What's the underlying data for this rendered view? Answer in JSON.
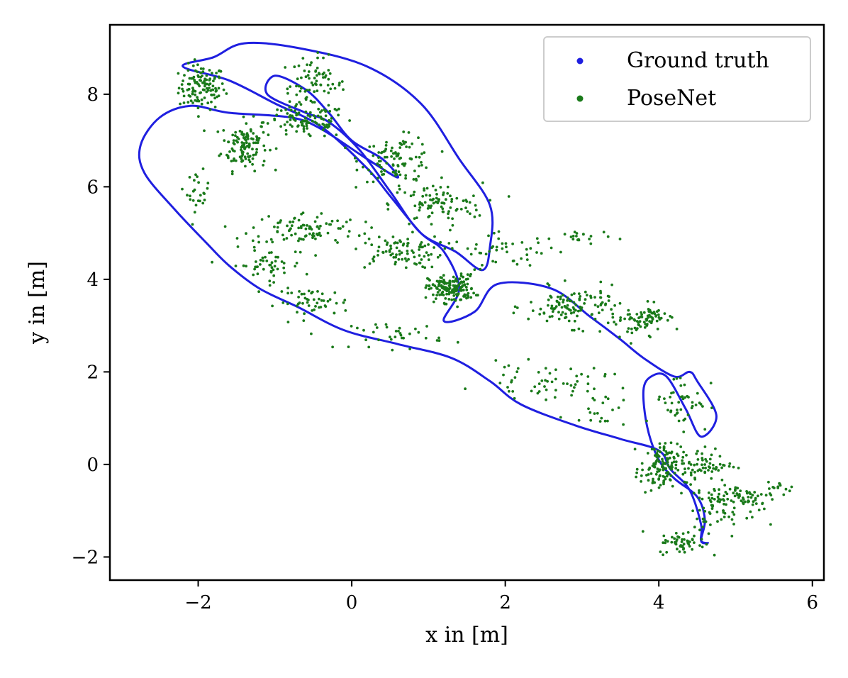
{
  "chart_data": {
    "type": "scatter",
    "title": "",
    "xlabel": "x in [m]",
    "ylabel": "y in [m]",
    "xlim": [
      -3.15,
      6.15
    ],
    "ylim": [
      -2.5,
      9.5
    ],
    "xticks": [
      -2,
      0,
      2,
      4,
      6
    ],
    "yticks": [
      -2,
      0,
      2,
      4,
      6,
      8
    ],
    "xtick_labels": [
      "−2",
      "0",
      "2",
      "4",
      "6"
    ],
    "ytick_labels": [
      "−2",
      "0",
      "2",
      "4",
      "6",
      "8"
    ],
    "grid": false,
    "legend": {
      "position": "top-right",
      "entries": [
        "Ground truth",
        "PoseNet"
      ]
    },
    "series": [
      {
        "name": "Ground truth",
        "color": "#1f1fe0",
        "kind": "trajectory",
        "points": [
          [
            4.65,
            -1.7
          ],
          [
            4.55,
            -1.65
          ],
          [
            4.55,
            -1.3
          ],
          [
            4.4,
            -0.55
          ],
          [
            4.15,
            -0.1
          ],
          [
            4.0,
            0.3
          ],
          [
            3.5,
            0.55
          ],
          [
            2.9,
            0.85
          ],
          [
            2.2,
            1.3
          ],
          [
            1.8,
            1.8
          ],
          [
            1.3,
            2.3
          ],
          [
            0.6,
            2.6
          ],
          [
            -0.1,
            2.9
          ],
          [
            -0.7,
            3.4
          ],
          [
            -1.2,
            3.8
          ],
          [
            -1.6,
            4.3
          ],
          [
            -1.9,
            4.8
          ],
          [
            -2.3,
            5.5
          ],
          [
            -2.7,
            6.3
          ],
          [
            -2.75,
            6.9
          ],
          [
            -2.5,
            7.5
          ],
          [
            -2.1,
            7.75
          ],
          [
            -1.6,
            7.6
          ],
          [
            -0.8,
            7.5
          ],
          [
            -0.4,
            7.25
          ],
          [
            0.2,
            6.6
          ],
          [
            0.6,
            6.2
          ],
          [
            0.4,
            6.6
          ],
          [
            0.0,
            7.0
          ],
          [
            -0.3,
            7.6
          ],
          [
            -0.6,
            8.1
          ],
          [
            -1.0,
            8.4
          ],
          [
            -1.1,
            8.0
          ],
          [
            -0.6,
            7.6
          ],
          [
            -0.3,
            7.4
          ],
          [
            0.1,
            6.8
          ],
          [
            0.5,
            5.9
          ],
          [
            0.9,
            5.0
          ],
          [
            1.35,
            4.6
          ],
          [
            1.7,
            4.2
          ],
          [
            1.8,
            4.7
          ],
          [
            1.8,
            5.6
          ],
          [
            1.4,
            6.6
          ],
          [
            0.9,
            7.8
          ],
          [
            0.2,
            8.6
          ],
          [
            -0.7,
            9.0
          ],
          [
            -1.4,
            9.1
          ],
          [
            -1.8,
            8.8
          ],
          [
            -2.2,
            8.6
          ],
          [
            -1.6,
            8.3
          ],
          [
            -1.0,
            7.8
          ],
          [
            -0.4,
            7.3
          ],
          [
            0.2,
            6.4
          ],
          [
            0.5,
            5.8
          ],
          [
            0.9,
            5.0
          ],
          [
            1.2,
            4.6
          ],
          [
            1.4,
            3.8
          ],
          [
            1.2,
            3.1
          ],
          [
            1.6,
            3.3
          ],
          [
            1.9,
            3.9
          ],
          [
            2.6,
            3.8
          ],
          [
            3.1,
            3.2
          ],
          [
            3.5,
            2.7
          ],
          [
            3.8,
            2.3
          ],
          [
            4.2,
            1.9
          ],
          [
            4.4,
            2.0
          ],
          [
            4.5,
            1.8
          ],
          [
            4.75,
            1.05
          ],
          [
            4.55,
            0.6
          ],
          [
            4.35,
            1.2
          ],
          [
            4.1,
            1.9
          ],
          [
            3.9,
            1.9
          ],
          [
            3.8,
            1.6
          ],
          [
            3.85,
            0.8
          ],
          [
            4.0,
            0.1
          ],
          [
            4.2,
            -0.3
          ],
          [
            4.5,
            -0.7
          ],
          [
            4.6,
            -1.2
          ],
          [
            4.55,
            -1.65
          ],
          [
            4.65,
            -1.7
          ]
        ]
      },
      {
        "name": "PoseNet",
        "color": "#1a7a1a",
        "kind": "scatter",
        "clusters": [
          {
            "center": [
              -1.95,
              8.15
            ],
            "spread": [
              0.25,
              0.4
            ],
            "count": 120
          },
          {
            "center": [
              -1.4,
              6.9
            ],
            "spread": [
              0.25,
              0.45
            ],
            "count": 120
          },
          {
            "center": [
              -2.0,
              5.9
            ],
            "spread": [
              0.12,
              0.35
            ],
            "count": 25
          },
          {
            "center": [
              -0.5,
              8.2
            ],
            "spread": [
              0.35,
              0.5
            ],
            "count": 80
          },
          {
            "center": [
              -0.6,
              7.4
            ],
            "spread": [
              0.45,
              0.3
            ],
            "count": 90
          },
          {
            "center": [
              0.6,
              6.6
            ],
            "spread": [
              0.4,
              0.4
            ],
            "count": 100
          },
          {
            "center": [
              1.1,
              5.6
            ],
            "spread": [
              0.5,
              0.4
            ],
            "count": 90
          },
          {
            "center": [
              -0.6,
              5.1
            ],
            "spread": [
              0.6,
              0.3
            ],
            "count": 90
          },
          {
            "center": [
              0.6,
              4.6
            ],
            "spread": [
              0.5,
              0.3
            ],
            "count": 90
          },
          {
            "center": [
              1.3,
              3.8
            ],
            "spread": [
              0.25,
              0.25
            ],
            "count": 160
          },
          {
            "center": [
              -1.1,
              4.3
            ],
            "spread": [
              0.4,
              0.3
            ],
            "count": 50
          },
          {
            "center": [
              -0.5,
              3.5
            ],
            "spread": [
              0.4,
              0.25
            ],
            "count": 50
          },
          {
            "center": [
              0.6,
              2.8
            ],
            "spread": [
              0.5,
              0.25
            ],
            "count": 35
          },
          {
            "center": [
              2.0,
              4.6
            ],
            "spread": [
              0.6,
              0.3
            ],
            "count": 45
          },
          {
            "center": [
              3.0,
              4.9
            ],
            "spread": [
              0.3,
              0.15
            ],
            "count": 20
          },
          {
            "center": [
              2.9,
              3.4
            ],
            "spread": [
              0.5,
              0.35
            ],
            "count": 120
          },
          {
            "center": [
              3.7,
              3.0
            ],
            "spread": [
              0.3,
              0.3
            ],
            "count": 40
          },
          {
            "center": [
              3.9,
              3.2
            ],
            "spread": [
              0.2,
              0.2
            ],
            "count": 40
          },
          {
            "center": [
              2.5,
              1.8
            ],
            "spread": [
              0.7,
              0.3
            ],
            "count": 50
          },
          {
            "center": [
              3.2,
              1.3
            ],
            "spread": [
              0.3,
              0.4
            ],
            "count": 25
          },
          {
            "center": [
              4.3,
              1.4
            ],
            "spread": [
              0.3,
              0.5
            ],
            "count": 45
          },
          {
            "center": [
              4.0,
              -0.1
            ],
            "spread": [
              0.2,
              0.45
            ],
            "count": 110
          },
          {
            "center": [
              4.5,
              0.0
            ],
            "spread": [
              0.4,
              0.3
            ],
            "count": 80
          },
          {
            "center": [
              5.0,
              -0.7
            ],
            "spread": [
              0.45,
              0.25
            ],
            "count": 80
          },
          {
            "center": [
              5.6,
              -0.5
            ],
            "spread": [
              0.15,
              0.1
            ],
            "count": 15
          },
          {
            "center": [
              4.3,
              -1.7
            ],
            "spread": [
              0.25,
              0.2
            ],
            "count": 50
          },
          {
            "center": [
              4.8,
              -1.1
            ],
            "spread": [
              0.4,
              0.4
            ],
            "count": 40
          }
        ]
      }
    ]
  }
}
